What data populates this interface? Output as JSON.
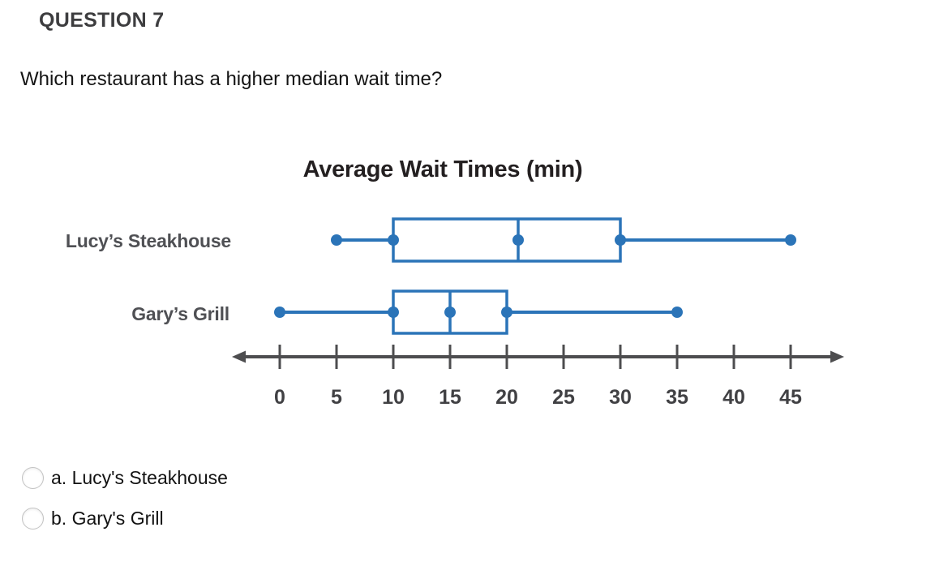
{
  "header": {
    "question_number": "QUESTION 7"
  },
  "question": {
    "text": "Which restaurant has a higher median wait time?"
  },
  "chart_data": {
    "type": "boxplot",
    "orientation": "horizontal",
    "title": "Average Wait Times (min)",
    "axis": {
      "min": 0,
      "max": 45,
      "tick_step": 5,
      "tick_labels": [
        "0",
        "5",
        "10",
        "15",
        "20",
        "25",
        "30",
        "35",
        "40",
        "45"
      ],
      "arrows_both_ends": true
    },
    "series": [
      {
        "name": "Lucy’s Steakhouse",
        "min": 5,
        "q1": 10,
        "median": 21,
        "q3": 30,
        "max": 45
      },
      {
        "name": "Gary’s Grill",
        "min": 0,
        "q1": 10,
        "median": 15,
        "q3": 20,
        "max": 35
      }
    ],
    "colors": {
      "box": "#2b74b8",
      "axis": "#4d4d4f",
      "tick_label": "#414144",
      "title": "#231f20",
      "row_label": "#4f5054"
    }
  },
  "options": [
    {
      "label": "a. Lucy's Steakhouse",
      "selected": false
    },
    {
      "label": "b. Gary's Grill",
      "selected": false
    }
  ]
}
